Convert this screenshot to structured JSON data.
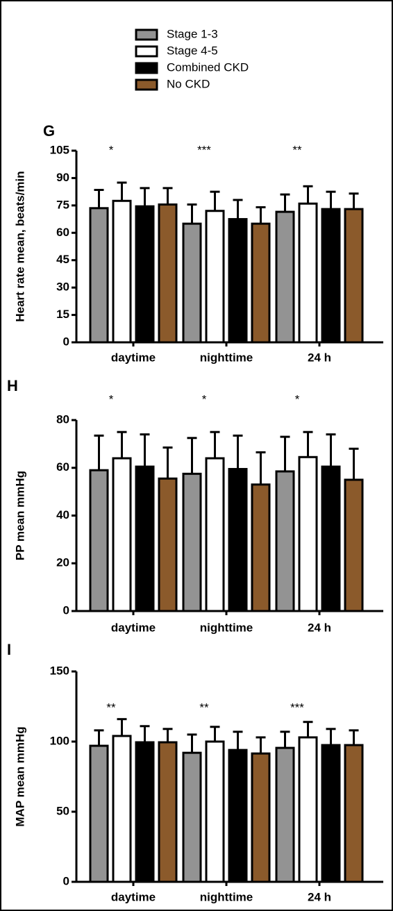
{
  "chart_data": [
    {
      "type": "bar",
      "panel_label": "G",
      "y_label": "Heart rate mean, beats/min",
      "categories": [
        "daytime",
        "nighttime",
        "24 h"
      ],
      "annotations": [
        "*",
        "***",
        "**"
      ],
      "ylim": [
        0,
        105
      ],
      "yticks": [
        0,
        15,
        30,
        45,
        60,
        75,
        90,
        105
      ],
      "series": [
        {
          "name": "Stage 1-3",
          "color": "#939393",
          "values": [
            73.5,
            65,
            71.5
          ],
          "errors": [
            10,
            10.5,
            9.5
          ]
        },
        {
          "name": "Stage 4-5",
          "color": "#ffffff",
          "values": [
            77.5,
            72,
            76
          ],
          "errors": [
            10,
            10.5,
            9.5
          ]
        },
        {
          "name": "Combined CKD",
          "color": "#000000",
          "values": [
            74.5,
            67.5,
            73
          ],
          "errors": [
            10,
            10.5,
            9.5
          ]
        },
        {
          "name": "No CKD",
          "color": "#8b5a2b",
          "values": [
            75.5,
            65,
            73
          ],
          "errors": [
            9,
            9,
            8.5
          ]
        }
      ]
    },
    {
      "type": "bar",
      "panel_label": "H",
      "y_label": "PP mean mmHg",
      "categories": [
        "daytime",
        "nighttime",
        "24 h"
      ],
      "annotations": [
        "*",
        "*",
        "*"
      ],
      "ylim": [
        0,
        80
      ],
      "yticks": [
        0,
        20,
        40,
        60,
        80
      ],
      "series": [
        {
          "color": "#939393",
          "values": [
            59,
            57.5,
            58.5
          ],
          "errors": [
            14.5,
            15,
            14.5
          ]
        },
        {
          "color": "#ffffff",
          "values": [
            64,
            64,
            64.5
          ],
          "errors": [
            11,
            11,
            10.5
          ]
        },
        {
          "color": "#000000",
          "values": [
            60.5,
            59.5,
            60.5
          ],
          "errors": [
            13.5,
            14,
            13.5
          ]
        },
        {
          "color": "#8b5a2b",
          "values": [
            55.5,
            53,
            55
          ],
          "errors": [
            13,
            13.5,
            13
          ]
        }
      ]
    },
    {
      "type": "bar",
      "panel_label": "I",
      "y_label": "MAP mean mmHg",
      "categories": [
        "daytime",
        "nighttime",
        "24 h"
      ],
      "annotations": [
        "**",
        "**",
        "***"
      ],
      "ylim": [
        0,
        150
      ],
      "yticks": [
        0,
        50,
        100,
        150
      ],
      "series": [
        {
          "color": "#939393",
          "values": [
            97,
            92,
            95.5
          ],
          "errors": [
            11,
            13,
            11.5
          ]
        },
        {
          "color": "#ffffff",
          "values": [
            104,
            100,
            103
          ],
          "errors": [
            12,
            10.5,
            11
          ]
        },
        {
          "color": "#000000",
          "values": [
            99.5,
            94,
            97.5
          ],
          "errors": [
            11.5,
            13,
            11.5
          ]
        },
        {
          "color": "#8b5a2b",
          "values": [
            99.5,
            91.5,
            97.5
          ],
          "errors": [
            9.5,
            11.5,
            10.5
          ]
        }
      ]
    }
  ]
}
